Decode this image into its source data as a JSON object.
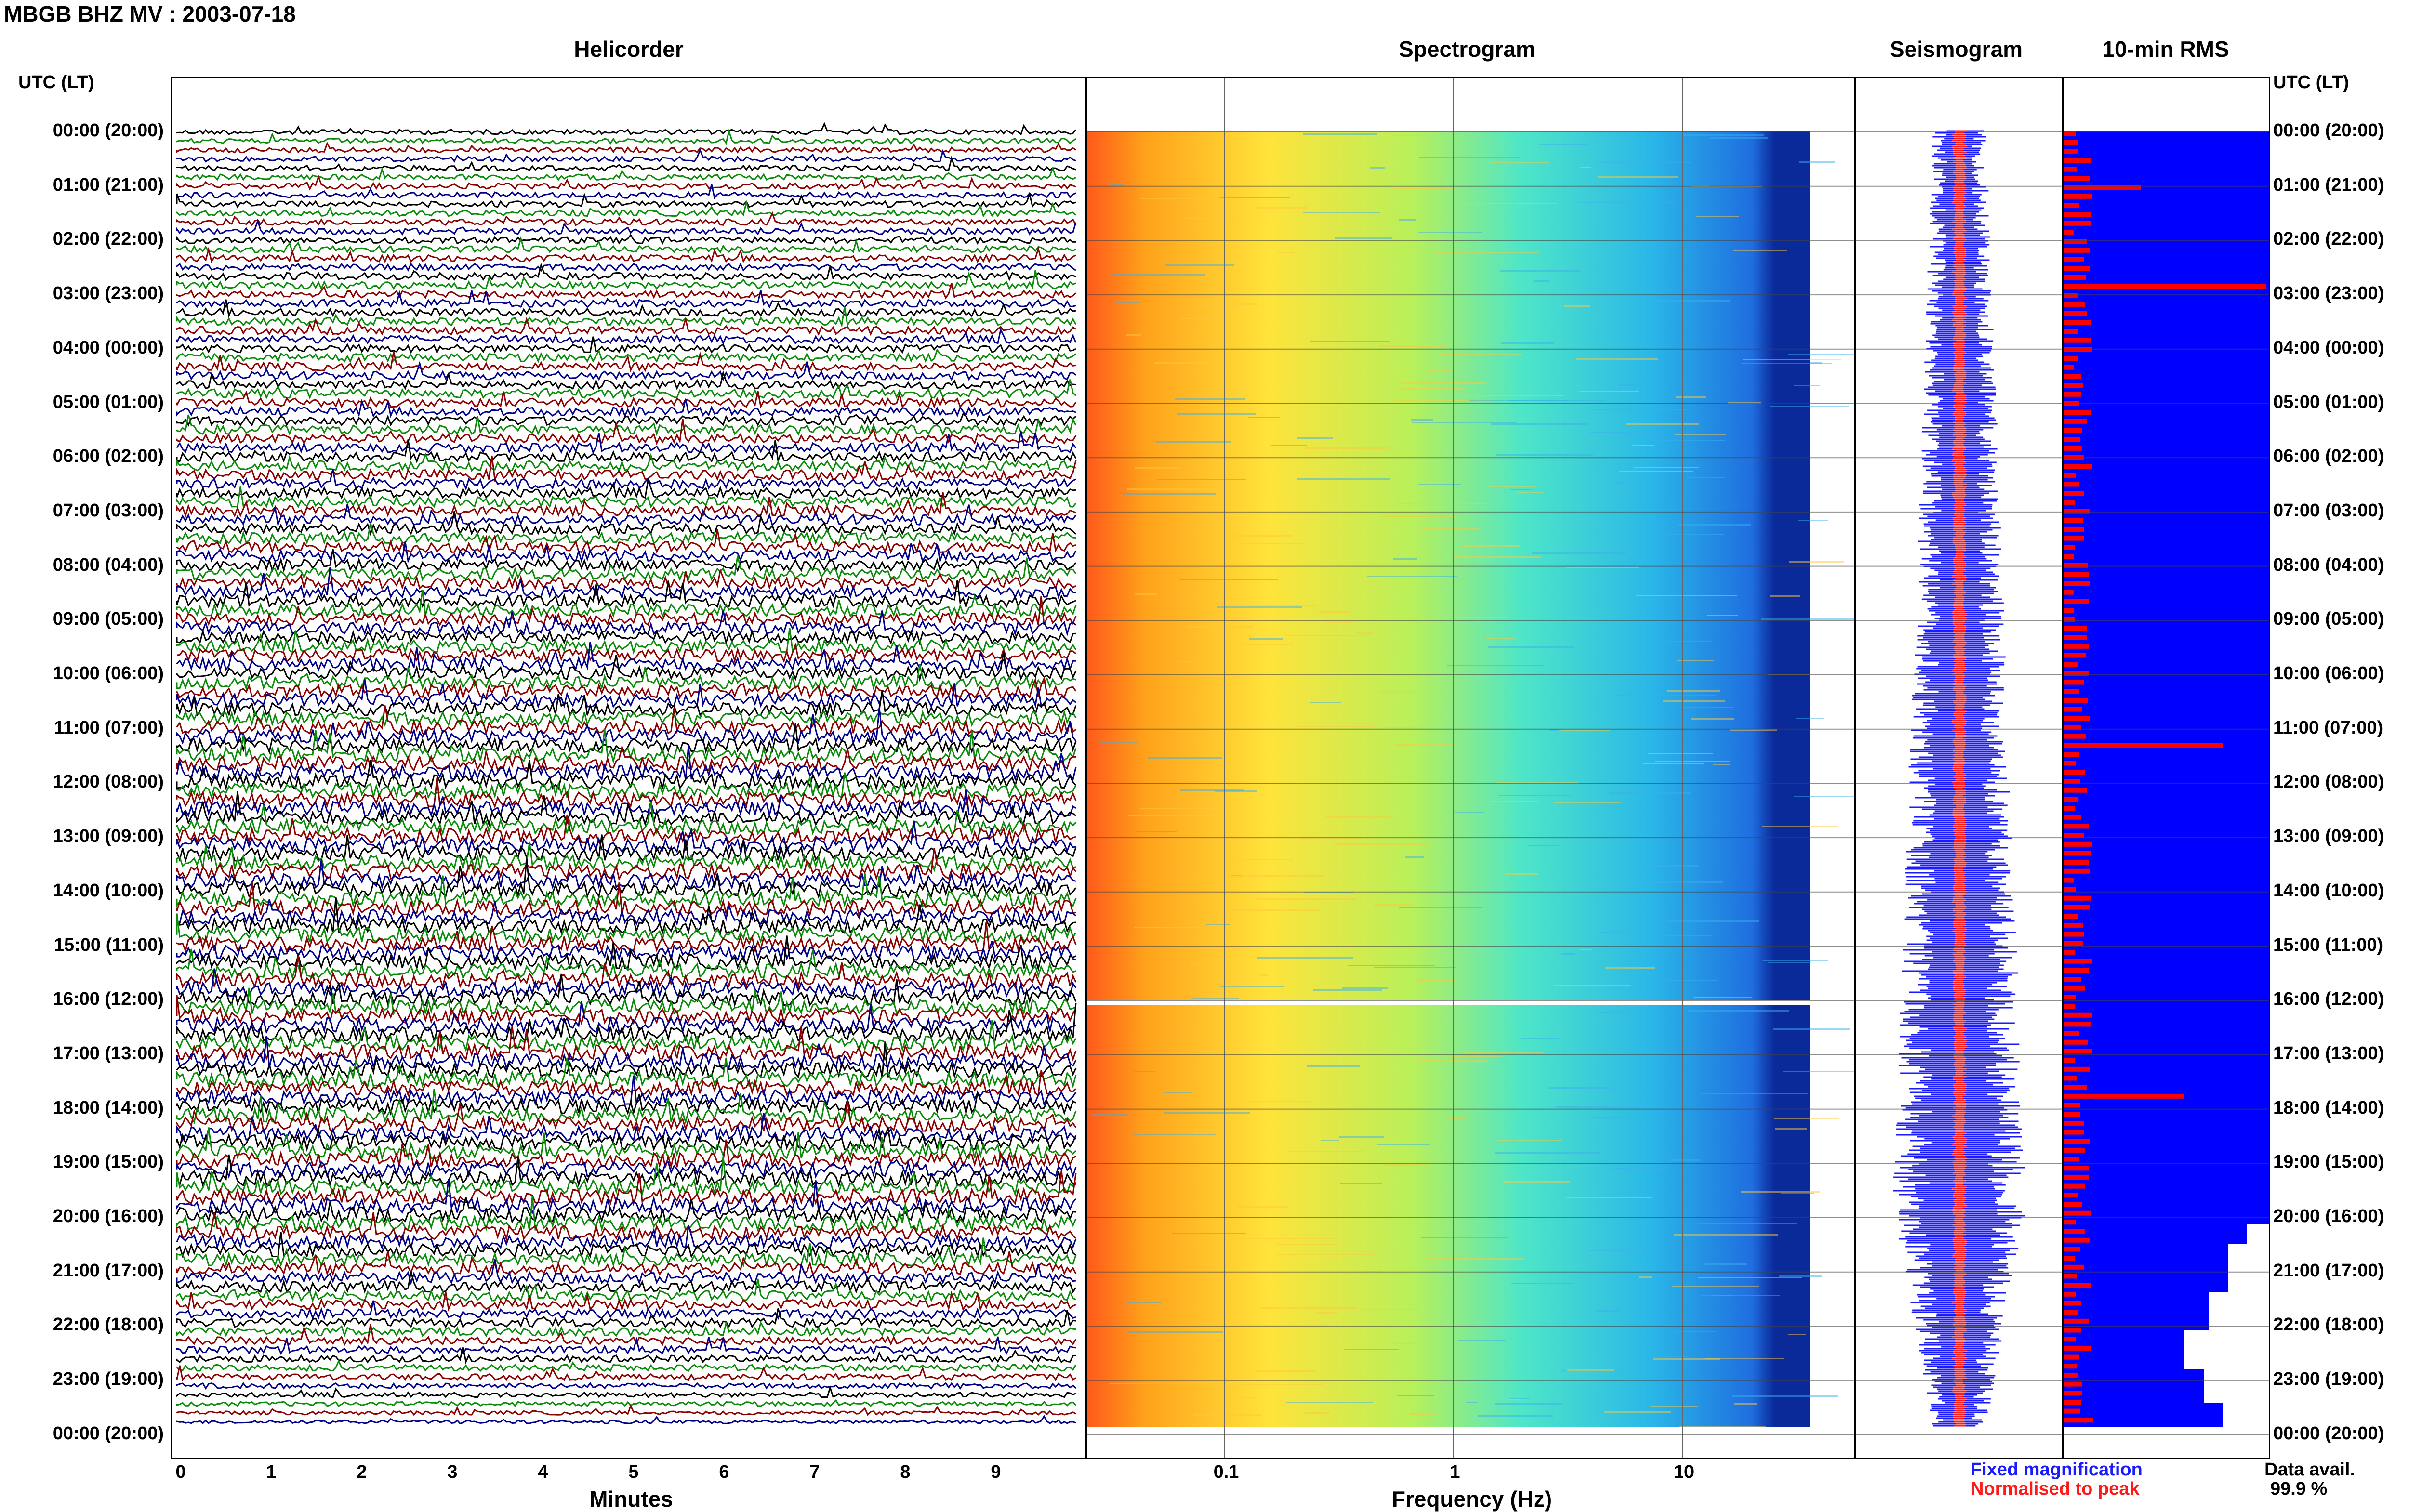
{
  "page": {
    "title": "MBGB BHZ MV : 2003-07-18",
    "utc_label_left": "UTC (LT)",
    "utc_label_right": "UTC (LT)"
  },
  "panels": {
    "helicorder": "Helicorder",
    "spectrogram": "Spectrogram",
    "seismogram": "Seismogram",
    "rms": "10-min RMS"
  },
  "time_labels": [
    "00:00 (20:00)",
    "01:00 (21:00)",
    "02:00 (22:00)",
    "03:00 (23:00)",
    "04:00 (00:00)",
    "05:00 (01:00)",
    "06:00 (02:00)",
    "07:00 (03:00)",
    "08:00 (04:00)",
    "09:00 (05:00)",
    "10:00 (06:00)",
    "11:00 (07:00)",
    "12:00 (08:00)",
    "13:00 (09:00)",
    "14:00 (10:00)",
    "15:00 (11:00)",
    "16:00 (12:00)",
    "17:00 (13:00)",
    "18:00 (14:00)",
    "19:00 (15:00)",
    "20:00 (16:00)",
    "21:00 (17:00)",
    "22:00 (18:00)",
    "23:00 (19:00)",
    "00:00 (20:00)"
  ],
  "x_axes": {
    "minutes": {
      "label": "Minutes",
      "ticks": [
        "0",
        "1",
        "2",
        "3",
        "4",
        "5",
        "6",
        "7",
        "8",
        "9"
      ]
    },
    "frequency": {
      "label": "Frequency (Hz)",
      "ticks": [
        "0.1",
        "1",
        "10"
      ],
      "scale": "log"
    }
  },
  "legend": {
    "fixed": "Fixed magnification",
    "normalised": "Normalised to peak",
    "fixed_color": "#1a1aff",
    "normalised_color": "#ff1a1a"
  },
  "data_availability": {
    "label": "Data avail.",
    "value": "99.9 %"
  },
  "colors": {
    "trace_cycle": [
      "#000000",
      "#0a8c0a",
      "#8b0000",
      "#00008b"
    ],
    "rms_bar": "#ff0000",
    "rms_fill": "#0000ff"
  }
}
